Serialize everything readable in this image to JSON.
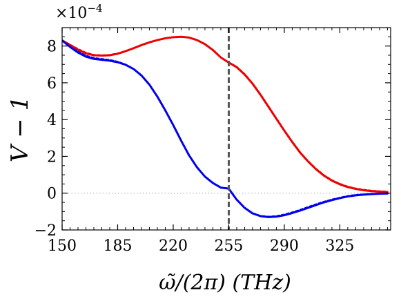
{
  "chart_data": {
    "type": "line",
    "xlabel": "ω̃/(2π) (THz)",
    "ylabel": "V − 1",
    "y_scale_text": "×10",
    "y_scale_exponent": "−4",
    "xlim": [
      150,
      357
    ],
    "ylim": [
      -2,
      9
    ],
    "xticks": [
      150,
      185,
      220,
      255,
      290,
      325
    ],
    "xtick_labels": [
      "150",
      "185",
      "220",
      "255",
      "290",
      "325"
    ],
    "yticks": [
      -2,
      0,
      2,
      4,
      6,
      8
    ],
    "ytick_labels": [
      "−2",
      "0",
      "2",
      "4",
      "6",
      "8"
    ],
    "vline_x": 255,
    "hline_y": 0,
    "grid": false,
    "colors": {
      "red": "#ee0000",
      "blue": "#0000ee",
      "vline": "#555555",
      "hline": "#bbbbbb"
    },
    "series": [
      {
        "color": "red",
        "style": "solid",
        "x": [
          150,
          155,
          160,
          165,
          170,
          175,
          180,
          185,
          190,
          195,
          200,
          205,
          210,
          215,
          220,
          225,
          230,
          235,
          240,
          245,
          250,
          255,
          260,
          265,
          270,
          275,
          280,
          285,
          290,
          295,
          300,
          305,
          310,
          315,
          320,
          325,
          330,
          335,
          340,
          345,
          350,
          355
        ],
        "values": [
          8.3,
          8.05,
          7.8,
          7.6,
          7.5,
          7.48,
          7.5,
          7.58,
          7.72,
          7.88,
          8.05,
          8.2,
          8.32,
          8.42,
          8.48,
          8.5,
          8.46,
          8.32,
          8.1,
          7.78,
          7.38,
          7.1,
          6.85,
          6.45,
          5.95,
          5.35,
          4.7,
          4.05,
          3.4,
          2.78,
          2.2,
          1.72,
          1.3,
          0.95,
          0.68,
          0.48,
          0.33,
          0.23,
          0.16,
          0.11,
          0.08,
          0.06
        ]
      },
      {
        "color": "red",
        "style": "dashed",
        "x": [
          150,
          155,
          160,
          165,
          170,
          175,
          180,
          185,
          190,
          195,
          200,
          205,
          210,
          215,
          220,
          225,
          230,
          235,
          240,
          245,
          250,
          255,
          260,
          265,
          270,
          275,
          280,
          285,
          290,
          295,
          300,
          305,
          310,
          315,
          320,
          325,
          330,
          335,
          340,
          345,
          350,
          355
        ],
        "values": [
          8.32,
          8.08,
          7.84,
          7.64,
          7.52,
          7.5,
          7.52,
          7.6,
          7.73,
          7.89,
          8.06,
          8.21,
          8.33,
          8.43,
          8.49,
          8.5,
          8.46,
          8.32,
          8.1,
          7.78,
          7.38,
          7.12,
          6.88,
          6.48,
          5.98,
          5.38,
          4.73,
          4.08,
          3.43,
          2.81,
          2.23,
          1.75,
          1.33,
          0.98,
          0.71,
          0.51,
          0.36,
          0.26,
          0.19,
          0.14,
          0.11,
          0.09
        ]
      },
      {
        "color": "blue",
        "style": "solid",
        "x": [
          150,
          155,
          160,
          165,
          170,
          175,
          180,
          185,
          190,
          195,
          200,
          205,
          210,
          215,
          220,
          225,
          230,
          235,
          240,
          245,
          250,
          255,
          260,
          265,
          270,
          275,
          280,
          285,
          290,
          295,
          300,
          305,
          310,
          315,
          320,
          325,
          330,
          335,
          340,
          345,
          350,
          355
        ],
        "values": [
          8.3,
          7.95,
          7.65,
          7.42,
          7.3,
          7.25,
          7.2,
          7.12,
          6.98,
          6.75,
          6.4,
          5.9,
          5.25,
          4.5,
          3.7,
          2.85,
          2.05,
          1.4,
          0.9,
          0.55,
          0.3,
          0.25,
          -0.35,
          -0.8,
          -1.1,
          -1.25,
          -1.3,
          -1.28,
          -1.2,
          -1.08,
          -0.95,
          -0.8,
          -0.65,
          -0.5,
          -0.38,
          -0.27,
          -0.18,
          -0.12,
          -0.08,
          -0.05,
          -0.03,
          -0.02
        ]
      },
      {
        "color": "blue",
        "style": "dashed",
        "x": [
          150,
          155,
          160,
          165,
          170,
          175,
          180,
          185,
          190,
          195,
          200,
          205,
          210,
          215,
          220,
          225,
          230,
          235,
          240,
          245,
          250,
          255,
          260,
          265,
          270,
          275,
          280,
          285,
          290,
          295,
          300,
          305,
          310,
          315,
          320,
          325,
          330,
          335,
          340,
          345,
          350,
          355
        ],
        "values": [
          8.28,
          7.98,
          7.7,
          7.48,
          7.36,
          7.3,
          7.25,
          7.15,
          7.0,
          6.76,
          6.41,
          5.91,
          5.26,
          4.51,
          3.71,
          2.86,
          2.06,
          1.41,
          0.91,
          0.56,
          0.31,
          0.26,
          -0.34,
          -0.78,
          -1.08,
          -1.23,
          -1.27,
          -1.24,
          -1.16,
          -1.04,
          -0.9,
          -0.75,
          -0.6,
          -0.46,
          -0.34,
          -0.24,
          -0.15,
          -0.09,
          -0.06,
          -0.03,
          -0.02,
          -0.01
        ]
      }
    ]
  }
}
